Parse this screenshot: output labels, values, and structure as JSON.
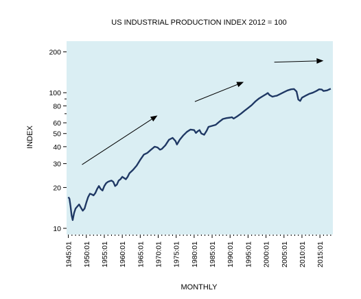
{
  "chart_data": {
    "type": "line",
    "title": "US INDUSTRIAL PRODUCTION INDEX 2012 = 100",
    "xlabel": "MONTHLY",
    "ylabel": "INDEX",
    "yscale": "log",
    "ylim": [
      9,
      240
    ],
    "xlim": [
      1944.5,
      2018.6
    ],
    "y_ticks": [
      10,
      20,
      30,
      40,
      50,
      60,
      80,
      100,
      200
    ],
    "x_ticks": [
      "1945:01",
      "1950:01",
      "1955:01",
      "1960:01",
      "1965:01",
      "1970:01",
      "1975:01",
      "1980:01",
      "1985:01",
      "1990:01",
      "1995:01",
      "2000:01",
      "2005:01",
      "2010:01",
      "2015:01"
    ],
    "plot_background": "#daeef3",
    "series": [
      {
        "color": "#1f3864",
        "x": [
          1945.0,
          1945.3,
          1945.6,
          1945.9,
          1946.2,
          1946.6,
          1947.0,
          1947.5,
          1948.0,
          1948.5,
          1949.0,
          1949.5,
          1950.0,
          1950.5,
          1951.0,
          1951.5,
          1952.0,
          1952.5,
          1953.0,
          1953.5,
          1954.0,
          1954.5,
          1955.0,
          1955.5,
          1956.0,
          1956.5,
          1957.0,
          1957.5,
          1958.0,
          1958.5,
          1959.0,
          1959.5,
          1960.0,
          1960.5,
          1961.0,
          1961.5,
          1962.0,
          1963.0,
          1964.0,
          1965.0,
          1966.0,
          1967.0,
          1968.0,
          1969.0,
          1969.8,
          1970.5,
          1971.0,
          1972.0,
          1973.0,
          1974.0,
          1974.8,
          1975.2,
          1976.0,
          1977.0,
          1978.0,
          1979.0,
          1980.0,
          1980.5,
          1981.0,
          1981.5,
          1982.0,
          1982.8,
          1983.5,
          1984.0,
          1985.0,
          1986.0,
          1987.0,
          1988.0,
          1989.0,
          1990.0,
          1990.5,
          1991.0,
          1992.0,
          1993.0,
          1994.0,
          1995.0,
          1996.0,
          1997.0,
          1998.0,
          1999.0,
          2000.0,
          2000.5,
          2001.0,
          2001.8,
          2002.5,
          2003.0,
          2004.0,
          2005.0,
          2006.0,
          2007.0,
          2007.8,
          2008.5,
          2009.0,
          2009.5,
          2010.0,
          2011.0,
          2012.0,
          2013.0,
          2014.0,
          2014.8,
          2015.5,
          2016.0,
          2017.0,
          2018.0
        ],
        "y": [
          17.0,
          16.5,
          14.5,
          12.5,
          11.5,
          13.0,
          14.0,
          14.5,
          15.0,
          14.2,
          13.5,
          14.0,
          15.5,
          17.0,
          18.0,
          17.8,
          17.5,
          18.2,
          19.5,
          20.5,
          19.5,
          19.0,
          20.5,
          21.5,
          22.0,
          22.3,
          22.5,
          22.0,
          20.5,
          21.0,
          22.5,
          23.0,
          24.0,
          23.5,
          23.0,
          24.0,
          25.5,
          27.0,
          29.0,
          32.0,
          35.0,
          36.0,
          38.0,
          40.0,
          39.5,
          38.0,
          38.5,
          41.0,
          45.0,
          46.5,
          44.0,
          41.5,
          45.0,
          48.5,
          51.5,
          53.5,
          53.0,
          50.5,
          52.0,
          53.0,
          50.0,
          49.0,
          52.5,
          56.0,
          57.0,
          58.0,
          61.0,
          64.0,
          65.0,
          65.5,
          66.0,
          64.5,
          67.0,
          70.0,
          73.5,
          77.0,
          81.0,
          86.0,
          90.5,
          94.0,
          97.5,
          99.5,
          96.0,
          93.5,
          94.5,
          95.0,
          98.0,
          101.0,
          104.0,
          106.0,
          106.5,
          102.0,
          89.0,
          87.0,
          92.0,
          95.0,
          98.0,
          100.0,
          103.0,
          106.0,
          105.5,
          103.0,
          104.0,
          107.0
        ]
      }
    ],
    "annotations": [
      {
        "type": "arrow",
        "x0": 1948.8,
        "y0": 29.5,
        "x1": 1969.8,
        "y1": 68.0
      },
      {
        "type": "arrow",
        "x0": 1980.2,
        "y0": 86.0,
        "x1": 1993.8,
        "y1": 120.0
      },
      {
        "type": "arrow",
        "x0": 2002.3,
        "y0": 168.0,
        "x1": 2016.0,
        "y1": 172.0
      }
    ],
    "grid": false,
    "legend": "none"
  }
}
